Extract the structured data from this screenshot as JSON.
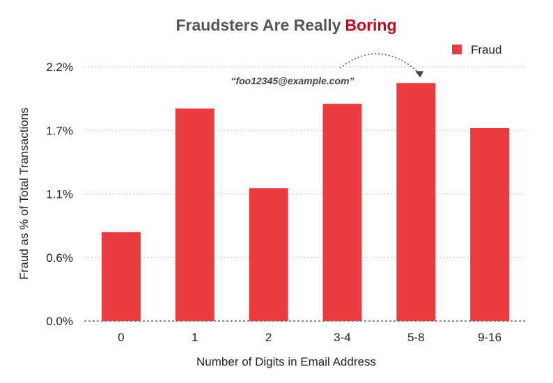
{
  "chart_data": {
    "type": "bar",
    "title": "Fraudsters Are Really",
    "title_emphasis": "Boring",
    "title_emphasis_color": "#d0021b",
    "xlabel": "Number of Digits in Email Address",
    "ylabel": "Fraud as % of Total Transactions",
    "categories": [
      "0",
      "1",
      "2",
      "3-4",
      "5-8",
      "9-16"
    ],
    "series": [
      {
        "name": "Fraud",
        "color": "#eb3d3f",
        "values": [
          0.0077,
          0.0184,
          0.0115,
          0.0188,
          0.0206,
          0.0167
        ]
      }
    ],
    "ylim": [
      0,
      0.022
    ],
    "yticks": [
      0,
      0.0055,
      0.011,
      0.0165,
      0.022
    ],
    "ytick_labels": [
      "0.0%",
      "0.6%",
      "1.1%",
      "1.7%",
      "2.2%"
    ],
    "grid": true,
    "legend_position": "top-right",
    "annotation": {
      "text": "“foo12345@example.com”",
      "target_category": "5-8"
    }
  }
}
